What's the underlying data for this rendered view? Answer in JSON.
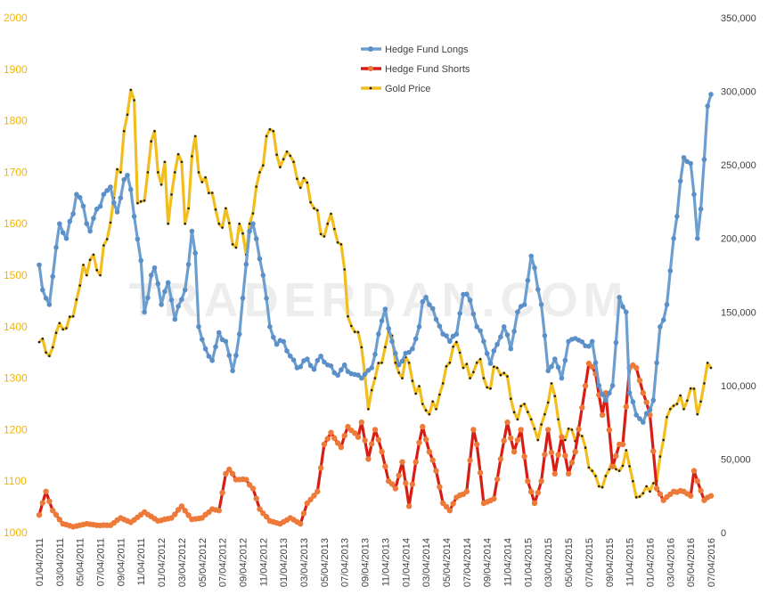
{
  "chart_data": {
    "type": "line",
    "title": "",
    "watermark": "TRADERDAN.COM",
    "left_axis": {
      "ylim": [
        1000,
        2000
      ],
      "ticks": [
        1000,
        1100,
        1200,
        1300,
        1400,
        1500,
        1600,
        1700,
        1800,
        1900,
        2000
      ],
      "color": "#f2b500"
    },
    "right_axis": {
      "ylim": [
        0,
        350000
      ],
      "ticks": [
        "0",
        "50,000",
        "100,000",
        "150,000",
        "200,000",
        "250,000",
        "300,000",
        "350,000"
      ]
    },
    "x_tick_labels": [
      "01/04/2011",
      "03/04/2011",
      "05/04/2011",
      "07/04/2011",
      "09/04/2011",
      "11/04/2011",
      "01/04/2012",
      "03/04/2012",
      "05/04/2012",
      "07/04/2012",
      "09/04/2012",
      "11/04/2012",
      "01/04/2013",
      "03/04/2013",
      "05/04/2013",
      "07/04/2013",
      "09/04/2013",
      "11/04/2013",
      "01/04/2014",
      "03/04/2014",
      "05/04/2014",
      "07/04/2014",
      "09/04/2014",
      "11/04/2014",
      "01/04/2015",
      "03/04/2015",
      "05/04/2015",
      "07/04/2015",
      "09/04/2015",
      "11/04/2015",
      "01/04/2016",
      "03/04/2016",
      "05/04/2016",
      "07/04/2016"
    ],
    "legend": {
      "placement": "top-center"
    },
    "series": [
      {
        "name": "Hedge Fund Longs",
        "axis": "right",
        "color": "#6d9ed0",
        "anchors": [
          [
            0,
            182000
          ],
          [
            1,
            165000
          ],
          [
            3,
            155000
          ],
          [
            6,
            210000
          ],
          [
            8,
            200000
          ],
          [
            11,
            230000
          ],
          [
            13,
            222000
          ],
          [
            15,
            205000
          ],
          [
            17,
            220000
          ],
          [
            19,
            230000
          ],
          [
            21,
            235000
          ],
          [
            23,
            218000
          ],
          [
            25,
            240000
          ],
          [
            26,
            243000
          ],
          [
            28,
            215000
          ],
          [
            30,
            185000
          ],
          [
            31,
            150000
          ],
          [
            33,
            175000
          ],
          [
            34,
            180000
          ],
          [
            36,
            155000
          ],
          [
            38,
            170000
          ],
          [
            40,
            145000
          ],
          [
            43,
            165000
          ],
          [
            45,
            205000
          ],
          [
            46,
            190000
          ],
          [
            47,
            140000
          ],
          [
            49,
            125000
          ],
          [
            51,
            117000
          ],
          [
            53,
            136000
          ],
          [
            55,
            130000
          ],
          [
            57,
            110000
          ],
          [
            59,
            135000
          ],
          [
            62,
            205000
          ],
          [
            63,
            210000
          ],
          [
            66,
            175000
          ],
          [
            68,
            140000
          ],
          [
            70,
            128000
          ],
          [
            72,
            130000
          ],
          [
            74,
            120000
          ],
          [
            76,
            112000
          ],
          [
            79,
            118000
          ],
          [
            81,
            111000
          ],
          [
            83,
            120000
          ],
          [
            85,
            114000
          ],
          [
            88,
            107000
          ],
          [
            90,
            114000
          ],
          [
            92,
            108000
          ],
          [
            95,
            105000
          ],
          [
            98,
            112000
          ],
          [
            100,
            135000
          ],
          [
            102,
            152000
          ],
          [
            104,
            130000
          ],
          [
            106,
            114000
          ],
          [
            108,
            122000
          ],
          [
            110,
            125000
          ],
          [
            112,
            140000
          ],
          [
            113,
            157000
          ],
          [
            114,
            160000
          ],
          [
            117,
            145000
          ],
          [
            119,
            135000
          ],
          [
            121,
            130000
          ],
          [
            123,
            135000
          ],
          [
            125,
            162000
          ],
          [
            127,
            158000
          ],
          [
            129,
            140000
          ],
          [
            131,
            130000
          ],
          [
            133,
            115000
          ],
          [
            135,
            128000
          ],
          [
            137,
            140000
          ],
          [
            139,
            125000
          ],
          [
            141,
            150000
          ],
          [
            143,
            155000
          ],
          [
            145,
            188000
          ],
          [
            146,
            180000
          ],
          [
            148,
            155000
          ],
          [
            150,
            110000
          ],
          [
            152,
            118000
          ],
          [
            154,
            105000
          ],
          [
            156,
            130000
          ],
          [
            158,
            132000
          ],
          [
            161,
            127000
          ],
          [
            163,
            130000
          ],
          [
            165,
            100000
          ],
          [
            167,
            90000
          ],
          [
            169,
            100000
          ],
          [
            171,
            160000
          ],
          [
            173,
            150000
          ],
          [
            174,
            95000
          ],
          [
            176,
            80000
          ],
          [
            178,
            75000
          ],
          [
            181,
            90000
          ],
          [
            183,
            140000
          ],
          [
            185,
            155000
          ],
          [
            187,
            200000
          ],
          [
            188,
            215000
          ],
          [
            190,
            255000
          ],
          [
            192,
            251000
          ],
          [
            194,
            200000
          ],
          [
            195,
            220000
          ],
          [
            197,
            290000
          ],
          [
            198,
            298000
          ]
        ]
      },
      {
        "name": "Hedge Fund Shorts",
        "axis": "right",
        "color": "#d81d14",
        "anchors": [
          [
            0,
            12000
          ],
          [
            2,
            28000
          ],
          [
            4,
            15000
          ],
          [
            7,
            6000
          ],
          [
            10,
            4000
          ],
          [
            14,
            6000
          ],
          [
            17,
            5000
          ],
          [
            21,
            5000
          ],
          [
            24,
            10000
          ],
          [
            27,
            7000
          ],
          [
            31,
            14000
          ],
          [
            35,
            8000
          ],
          [
            39,
            10000
          ],
          [
            42,
            18000
          ],
          [
            45,
            9000
          ],
          [
            48,
            10000
          ],
          [
            51,
            16000
          ],
          [
            53,
            15000
          ],
          [
            55,
            40000
          ],
          [
            56,
            43000
          ],
          [
            58,
            36000
          ],
          [
            61,
            36000
          ],
          [
            63,
            30000
          ],
          [
            65,
            16000
          ],
          [
            68,
            8000
          ],
          [
            71,
            6000
          ],
          [
            74,
            10000
          ],
          [
            77,
            6000
          ],
          [
            79,
            20000
          ],
          [
            82,
            28000
          ],
          [
            84,
            60000
          ],
          [
            86,
            68000
          ],
          [
            89,
            58000
          ],
          [
            91,
            72000
          ],
          [
            94,
            65000
          ],
          [
            95,
            75000
          ],
          [
            97,
            50000
          ],
          [
            99,
            70000
          ],
          [
            101,
            55000
          ],
          [
            103,
            35000
          ],
          [
            105,
            30000
          ],
          [
            107,
            48000
          ],
          [
            109,
            18000
          ],
          [
            111,
            48000
          ],
          [
            113,
            72000
          ],
          [
            115,
            55000
          ],
          [
            117,
            42000
          ],
          [
            119,
            20000
          ],
          [
            121,
            15000
          ],
          [
            123,
            24000
          ],
          [
            126,
            28000
          ],
          [
            128,
            70000
          ],
          [
            129,
            60000
          ],
          [
            131,
            20000
          ],
          [
            134,
            23000
          ],
          [
            136,
            50000
          ],
          [
            138,
            75000
          ],
          [
            140,
            55000
          ],
          [
            142,
            70000
          ],
          [
            144,
            35000
          ],
          [
            146,
            20000
          ],
          [
            148,
            35000
          ],
          [
            150,
            70000
          ],
          [
            152,
            40000
          ],
          [
            154,
            65000
          ],
          [
            156,
            40000
          ],
          [
            158,
            55000
          ],
          [
            160,
            85000
          ],
          [
            162,
            115000
          ],
          [
            164,
            108000
          ],
          [
            166,
            80000
          ],
          [
            167,
            95000
          ],
          [
            169,
            45000
          ],
          [
            171,
            60000
          ],
          [
            172,
            60000
          ],
          [
            174,
            112000
          ],
          [
            176,
            112000
          ],
          [
            178,
            95000
          ],
          [
            180,
            80000
          ],
          [
            182,
            30000
          ],
          [
            184,
            22000
          ],
          [
            187,
            28000
          ],
          [
            190,
            28000
          ],
          [
            192,
            25000
          ],
          [
            193,
            42000
          ],
          [
            196,
            22000
          ],
          [
            198,
            25000
          ]
        ]
      },
      {
        "name": "Gold Price",
        "axis": "left",
        "color": "#f2be1e",
        "anchors": [
          [
            0,
            1370
          ],
          [
            2,
            1350
          ],
          [
            3,
            1343
          ],
          [
            4,
            1360
          ],
          [
            5,
            1388
          ],
          [
            6,
            1407
          ],
          [
            8,
            1397
          ],
          [
            10,
            1420
          ],
          [
            12,
            1480
          ],
          [
            13,
            1520
          ],
          [
            14,
            1500
          ],
          [
            15,
            1530
          ],
          [
            16,
            1540
          ],
          [
            17,
            1510
          ],
          [
            18,
            1500
          ],
          [
            20,
            1570
          ],
          [
            22,
            1650
          ],
          [
            24,
            1700
          ],
          [
            25,
            1780
          ],
          [
            27,
            1860
          ],
          [
            28,
            1840
          ],
          [
            29,
            1640
          ],
          [
            31,
            1645
          ],
          [
            32,
            1700
          ],
          [
            33,
            1760
          ],
          [
            34,
            1780
          ],
          [
            35,
            1700
          ],
          [
            37,
            1720
          ],
          [
            38,
            1600
          ],
          [
            40,
            1700
          ],
          [
            42,
            1720
          ],
          [
            43,
            1600
          ],
          [
            44,
            1630
          ],
          [
            46,
            1770
          ],
          [
            47,
            1700
          ],
          [
            49,
            1690
          ],
          [
            51,
            1660
          ],
          [
            53,
            1600
          ],
          [
            55,
            1630
          ],
          [
            57,
            1560
          ],
          [
            59,
            1600
          ],
          [
            61,
            1540
          ],
          [
            62,
            1600
          ],
          [
            63,
            1620
          ],
          [
            65,
            1700
          ],
          [
            67,
            1770
          ],
          [
            69,
            1780
          ],
          [
            71,
            1710
          ],
          [
            73,
            1740
          ],
          [
            75,
            1720
          ],
          [
            77,
            1670
          ],
          [
            79,
            1680
          ],
          [
            81,
            1630
          ],
          [
            83,
            1580
          ],
          [
            85,
            1600
          ],
          [
            87,
            1590
          ],
          [
            89,
            1560
          ],
          [
            91,
            1420
          ],
          [
            93,
            1390
          ],
          [
            95,
            1360
          ],
          [
            97,
            1240
          ],
          [
            99,
            1300
          ],
          [
            101,
            1330
          ],
          [
            103,
            1390
          ],
          [
            105,
            1330
          ],
          [
            107,
            1300
          ],
          [
            109,
            1330
          ],
          [
            111,
            1270
          ],
          [
            113,
            1250
          ],
          [
            115,
            1230
          ],
          [
            117,
            1240
          ],
          [
            119,
            1290
          ],
          [
            121,
            1330
          ],
          [
            123,
            1370
          ],
          [
            125,
            1320
          ],
          [
            127,
            1300
          ],
          [
            129,
            1330
          ],
          [
            131,
            1300
          ],
          [
            133,
            1280
          ],
          [
            135,
            1320
          ],
          [
            137,
            1310
          ],
          [
            139,
            1260
          ],
          [
            141,
            1220
          ],
          [
            143,
            1250
          ],
          [
            145,
            1220
          ],
          [
            147,
            1180
          ],
          [
            149,
            1230
          ],
          [
            151,
            1290
          ],
          [
            153,
            1220
          ],
          [
            155,
            1180
          ],
          [
            157,
            1200
          ],
          [
            159,
            1190
          ],
          [
            161,
            1165
          ],
          [
            163,
            1120
          ],
          [
            165,
            1090
          ],
          [
            167,
            1110
          ],
          [
            169,
            1140
          ],
          [
            171,
            1120
          ],
          [
            173,
            1160
          ],
          [
            175,
            1100
          ],
          [
            177,
            1070
          ],
          [
            180,
            1080
          ],
          [
            182,
            1100
          ],
          [
            184,
            1180
          ],
          [
            186,
            1240
          ],
          [
            188,
            1250
          ],
          [
            190,
            1240
          ],
          [
            192,
            1280
          ],
          [
            194,
            1230
          ],
          [
            196,
            1290
          ],
          [
            198,
            1320
          ]
        ]
      }
    ]
  }
}
